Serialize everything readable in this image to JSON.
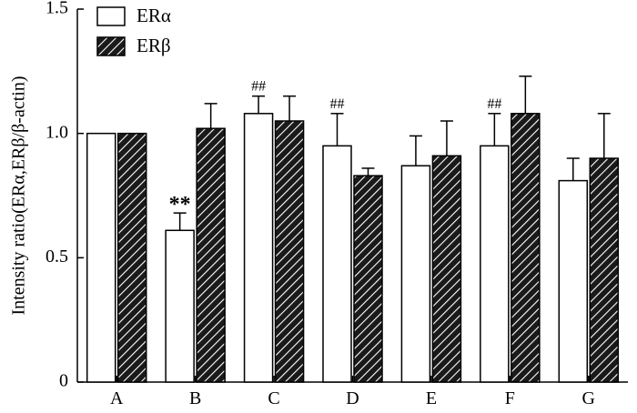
{
  "chart_data": {
    "type": "bar",
    "title": "",
    "xlabel": "",
    "ylabel": "Intensity ratio(ERα,ERβ/β-actin)",
    "ylim": [
      0,
      1.5
    ],
    "yticks": [
      "0",
      "0.5",
      "1.0",
      "1.5"
    ],
    "categories": [
      "A",
      "B",
      "C",
      "D",
      "E",
      "F",
      "G"
    ],
    "legend_position": "top-left",
    "series": [
      {
        "name": "ERα",
        "fill": "white",
        "values": [
          1.0,
          0.61,
          1.08,
          0.95,
          0.87,
          0.95,
          0.81
        ],
        "errors": [
          0.0,
          0.07,
          0.07,
          0.13,
          0.12,
          0.13,
          0.09
        ],
        "annotations": [
          "",
          "**",
          "##",
          "##",
          "",
          "##",
          ""
        ]
      },
      {
        "name": "ERβ",
        "fill": "hatched",
        "values": [
          1.0,
          1.02,
          1.05,
          0.83,
          0.91,
          1.08,
          0.9
        ],
        "errors": [
          0.0,
          0.1,
          0.1,
          0.03,
          0.14,
          0.15,
          0.18
        ],
        "annotations": [
          "",
          "",
          "",
          "",
          "",
          "",
          ""
        ]
      }
    ]
  }
}
